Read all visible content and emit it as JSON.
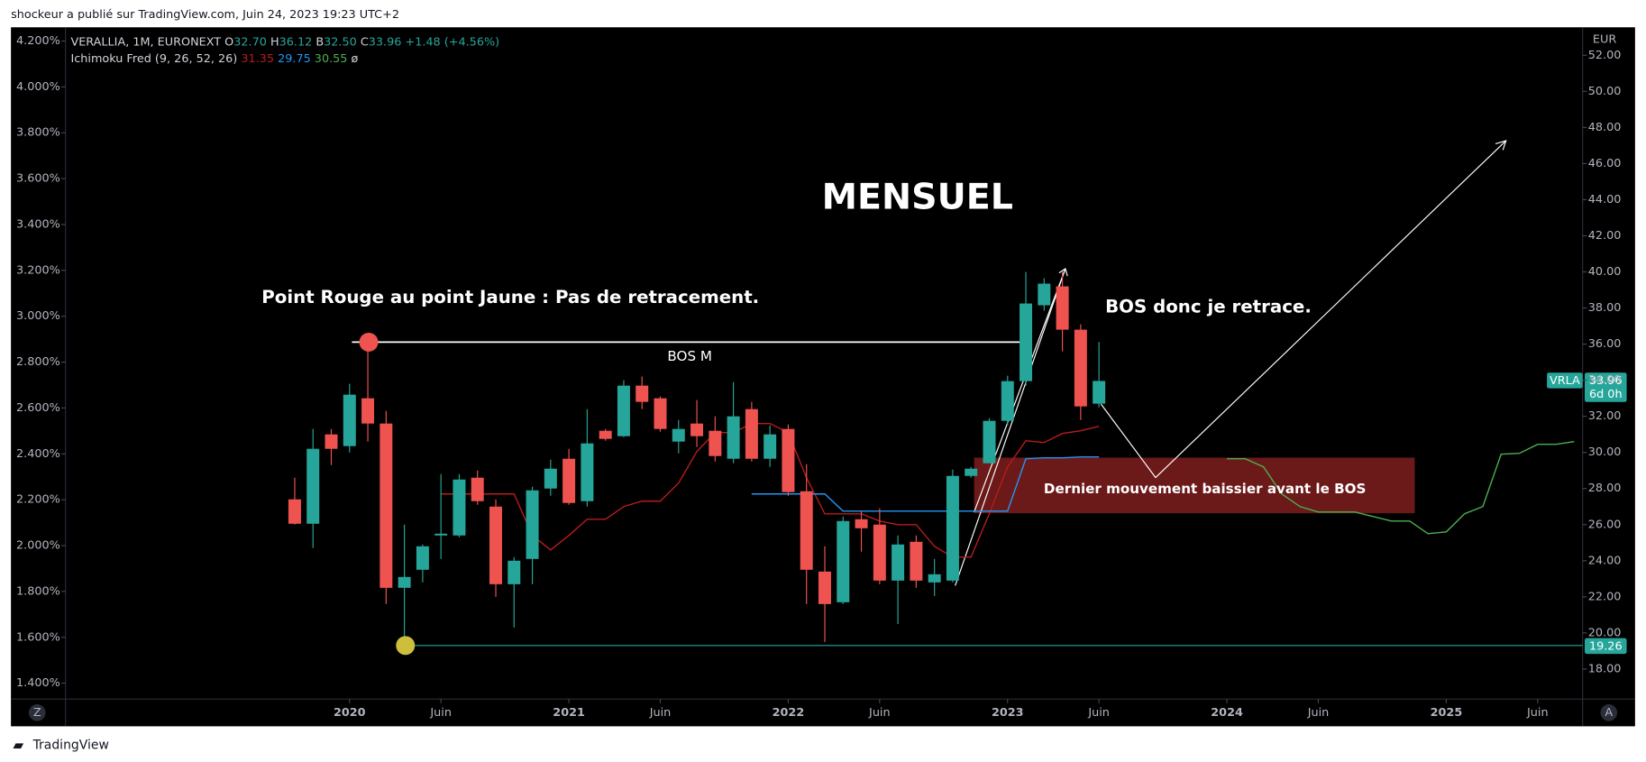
{
  "header": {
    "byline": "shockeur a publié sur TradingView.com, Juin 24, 2023 19:23 UTC+2"
  },
  "footer": {
    "brand": "TradingView"
  },
  "chart_data": {
    "type": "candlestick",
    "legend": {
      "symbol": "VERALLIA, 1M, EURONEXT",
      "ohlc": [
        [
          "O",
          "32.70"
        ],
        [
          "H",
          "36.12"
        ],
        [
          "B",
          "32.50"
        ],
        [
          "C",
          "33.96"
        ]
      ],
      "change": "+1.48 (+4.56%)",
      "indicator": "Ichimoku Fred (9, 26, 52, 26)",
      "indicator_values": [
        "31.35",
        "29.75",
        "30.55",
        "ø"
      ]
    },
    "currency": "EUR",
    "price_labels": {
      "symbol": "VRLA",
      "last": "33.96",
      "countdown": "6d 0h",
      "low_line": "19.26"
    },
    "buttons": [
      "Z",
      "A"
    ],
    "up_color": "#26a69a",
    "down_color": "#ef5350",
    "x": [
      "2019-10",
      "2019-11",
      "2019-12",
      "2020-01",
      "2020-02",
      "2020-03",
      "2020-04",
      "2020-05",
      "2020-06",
      "2020-07",
      "2020-08",
      "2020-09",
      "2020-10",
      "2020-11",
      "2020-12",
      "2021-01",
      "2021-02",
      "2021-03",
      "2021-04",
      "2021-05",
      "2021-06",
      "2021-07",
      "2021-08",
      "2021-09",
      "2021-10",
      "2021-11",
      "2021-12",
      "2022-01",
      "2022-02",
      "2022-03",
      "2022-04",
      "2022-05",
      "2022-06",
      "2022-07",
      "2022-08",
      "2022-09",
      "2022-10",
      "2022-11",
      "2022-12",
      "2023-01",
      "2023-02",
      "2023-03",
      "2023-04",
      "2023-05",
      "2023-06"
    ],
    "open": [
      27.4,
      26.05,
      31.0,
      30.35,
      33.0,
      31.6,
      22.5,
      23.5,
      25.4,
      25.4,
      28.6,
      27.0,
      22.7,
      24.1,
      28.0,
      29.65,
      27.3,
      31.2,
      30.9,
      33.7,
      33.0,
      30.6,
      31.6,
      31.2,
      29.65,
      32.4,
      29.65,
      31.3,
      27.85,
      23.4,
      21.7,
      26.3,
      26.0,
      22.9,
      25.05,
      22.8,
      22.9,
      28.7,
      29.4,
      31.75,
      33.95,
      38.15,
      39.2,
      36.8,
      32.7
    ],
    "high": [
      28.6,
      31.3,
      31.3,
      33.8,
      36.1,
      32.3,
      26.0,
      24.9,
      28.8,
      28.8,
      29.0,
      27.4,
      24.2,
      28.1,
      29.6,
      30.2,
      32.4,
      31.3,
      34.0,
      34.2,
      33.1,
      31.8,
      32.9,
      32.0,
      33.9,
      32.8,
      31.5,
      31.55,
      29.35,
      24.8,
      26.45,
      26.75,
      26.9,
      25.4,
      25.4,
      24.1,
      29.05,
      29.2,
      31.9,
      34.25,
      40.0,
      39.65,
      40.0,
      37.1,
      36.12
    ],
    "low": [
      26.0,
      24.7,
      29.3,
      30.0,
      30.6,
      21.6,
      19.3,
      22.8,
      24.1,
      25.3,
      27.1,
      22.0,
      20.3,
      22.7,
      27.6,
      27.1,
      27.0,
      30.65,
      30.85,
      32.4,
      31.15,
      29.95,
      30.3,
      29.5,
      29.4,
      29.5,
      29.2,
      27.6,
      21.6,
      19.5,
      21.6,
      24.5,
      22.7,
      20.5,
      22.5,
      22.05,
      22.8,
      28.6,
      29.4,
      31.5,
      33.7,
      37.85,
      35.6,
      31.8,
      32.5
    ],
    "close": [
      26.05,
      30.2,
      30.2,
      33.2,
      31.6,
      22.5,
      23.1,
      24.8,
      25.5,
      28.5,
      27.3,
      22.7,
      24.0,
      27.9,
      29.1,
      27.2,
      30.5,
      30.75,
      33.7,
      32.8,
      31.3,
      31.3,
      30.9,
      29.8,
      32.0,
      29.65,
      31.0,
      27.8,
      23.5,
      21.6,
      26.2,
      25.8,
      22.9,
      24.9,
      22.9,
      23.25,
      28.7,
      29.1,
      31.75,
      33.95,
      38.25,
      39.35,
      36.8,
      32.55,
      33.96
    ],
    "series": [
      {
        "color": "#b71c1c",
        "x": [
          "2020-06",
          "2020-07",
          "2020-08",
          "2020-09",
          "2020-10",
          "2020-11",
          "2020-12",
          "2021-01",
          "2021-02",
          "2021-03",
          "2021-04",
          "2021-05",
          "2021-06",
          "2021-07",
          "2021-08",
          "2021-09",
          "2021-10",
          "2021-11",
          "2021-12",
          "2022-01",
          "2022-02",
          "2022-03",
          "2022-04",
          "2022-05",
          "2022-06",
          "2022-07",
          "2022-08",
          "2022-09",
          "2022-10",
          "2022-11",
          "2022-12",
          "2023-01",
          "2023-02",
          "2023-03",
          "2023-04",
          "2023-05",
          "2023-06"
        ],
        "values": [
          27.7,
          27.7,
          27.7,
          27.7,
          27.7,
          25.4,
          24.6,
          25.4,
          26.3,
          26.3,
          27.0,
          27.3,
          27.3,
          28.3,
          30.05,
          31.1,
          31.1,
          31.6,
          31.6,
          31.1,
          28.6,
          26.6,
          26.6,
          26.6,
          26.2,
          26.0,
          26.0,
          24.8,
          24.2,
          24.2,
          26.6,
          29.2,
          30.65,
          30.55,
          31.05,
          31.2,
          31.45
        ]
      },
      {
        "color": "#2196f3",
        "x": [
          "2021-11",
          "2021-12",
          "2022-01",
          "2022-02",
          "2022-03",
          "2022-04",
          "2022-05",
          "2022-06",
          "2022-07",
          "2022-08",
          "2022-09",
          "2022-10",
          "2022-11",
          "2022-12",
          "2023-01",
          "2023-02",
          "2023-03",
          "2023-04",
          "2023-05",
          "2023-06"
        ],
        "values": [
          27.7,
          27.7,
          27.7,
          27.7,
          27.7,
          26.75,
          26.75,
          26.75,
          26.75,
          26.75,
          26.75,
          26.75,
          26.75,
          26.75,
          26.75,
          29.65,
          29.7,
          29.7,
          29.75,
          29.75
        ]
      },
      {
        "color": "#4caf50",
        "x": [
          "2024-01",
          "2024-02",
          "2024-03",
          "2024-04",
          "2024-05",
          "2024-06",
          "2024-07",
          "2024-08",
          "2024-09",
          "2024-10",
          "2024-11",
          "2024-12",
          "2025-01",
          "2025-02",
          "2025-03",
          "2025-04",
          "2025-05",
          "2025-06",
          "2025-07",
          "2025-08"
        ],
        "values": [
          29.65,
          29.65,
          29.2,
          27.7,
          27.0,
          26.7,
          26.7,
          26.7,
          26.45,
          26.2,
          26.2,
          25.5,
          25.6,
          26.6,
          27.0,
          29.9,
          29.95,
          30.45,
          30.45,
          30.6
        ]
      }
    ],
    "xlim": [
      "2018-09",
      "2025-08"
    ],
    "xticks": [
      {
        "value": "2020-01",
        "label": "2020"
      },
      {
        "value": "2020-06",
        "label": "Juin"
      },
      {
        "value": "2021-01",
        "label": "2021"
      },
      {
        "value": "2021-06",
        "label": "Juin"
      },
      {
        "value": "2022-01",
        "label": "2022"
      },
      {
        "value": "2022-06",
        "label": "Juin"
      },
      {
        "value": "2023-01",
        "label": "2023"
      },
      {
        "value": "2023-06",
        "label": "Juin"
      },
      {
        "value": "2024-01",
        "label": "2024"
      },
      {
        "value": "2024-06",
        "label": "Juin"
      },
      {
        "value": "2025-01",
        "label": "2025"
      },
      {
        "value": "2025-06",
        "label": "Juin"
      }
    ],
    "ylim": [
      16.34,
      53.55
    ],
    "yticks": [
      {
        "value": 18,
        "label": "18.00"
      },
      {
        "value": 20,
        "label": "20.00"
      },
      {
        "value": 22,
        "label": "22.00"
      },
      {
        "value": 24,
        "label": "24.00"
      },
      {
        "value": 26,
        "label": "26.00"
      },
      {
        "value": 28,
        "label": "28.00"
      },
      {
        "value": 30,
        "label": "30.00"
      },
      {
        "value": 32,
        "label": "32.00"
      },
      {
        "value": 34,
        "label": "34.00"
      },
      {
        "value": 36,
        "label": "36.00"
      },
      {
        "value": 38,
        "label": "38.00"
      },
      {
        "value": 40,
        "label": "40.00"
      },
      {
        "value": 42,
        "label": "42.00"
      },
      {
        "value": 44,
        "label": "44.00"
      },
      {
        "value": 46,
        "label": "46.00"
      },
      {
        "value": 48,
        "label": "48.00"
      },
      {
        "value": 50,
        "label": "50.00"
      },
      {
        "value": 52,
        "label": "52.00"
      }
    ],
    "y2lim": [
      1.331,
      4.26
    ],
    "y2ticks": [
      {
        "value": 1.4,
        "label": "1.400%"
      },
      {
        "value": 1.6,
        "label": "1.600%"
      },
      {
        "value": 1.8,
        "label": "1.800%"
      },
      {
        "value": 2.0,
        "label": "2.000%"
      },
      {
        "value": 2.2,
        "label": "2.200%"
      },
      {
        "value": 2.4,
        "label": "2.400%"
      },
      {
        "value": 2.6,
        "label": "2.600%"
      },
      {
        "value": 2.8,
        "label": "2.800%"
      },
      {
        "value": 3.0,
        "label": "3.000%"
      },
      {
        "value": 3.2,
        "label": "3.200%"
      },
      {
        "value": 3.4,
        "label": "3.400%"
      },
      {
        "value": 3.6,
        "label": "3.600%"
      },
      {
        "value": 3.8,
        "label": "3.800%"
      },
      {
        "value": 4.0,
        "label": "4.000%"
      },
      {
        "value": 4.2,
        "label": "4.200%"
      }
    ],
    "annotations": [
      "MENSUEL",
      "Point Rouge au point Jaune : Pas de retracement.",
      "BOS M",
      "BOS donc je retrace.",
      "Dernier mouvement baissier avant  le BOS"
    ]
  }
}
